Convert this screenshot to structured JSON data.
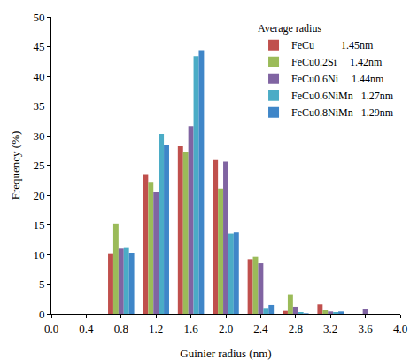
{
  "chart_data": {
    "type": "bar",
    "x_label": "Guinier radius (nm)",
    "y_label": "Frequency (%)",
    "x": [
      0.8,
      1.2,
      1.6,
      2.0,
      2.4,
      2.8,
      3.2,
      3.6
    ],
    "series": [
      {
        "name": "FeCu",
        "radius": "1.45nm",
        "color": "#c0504d",
        "values": [
          10.2,
          23.5,
          28.2,
          26.0,
          9.2,
          0.5,
          1.6,
          0
        ]
      },
      {
        "name": "FeCu0.2Si",
        "radius": "1.42nm",
        "color": "#9bbb59",
        "values": [
          15.1,
          22.2,
          27.3,
          21.1,
          9.6,
          3.2,
          0.6,
          0
        ]
      },
      {
        "name": "FeCu0.6Ni",
        "radius": "1.44nm",
        "color": "#8064a2",
        "values": [
          11.0,
          20.5,
          31.6,
          25.6,
          8.5,
          1.2,
          0.4,
          0.8
        ]
      },
      {
        "name": "FeCu0.6NiMn",
        "radius": "1.27nm",
        "color": "#4bacc6",
        "values": [
          11.1,
          30.3,
          43.4,
          13.5,
          1.0,
          0.3,
          0.3,
          0
        ]
      },
      {
        "name": "FeCu0.8NiMn",
        "radius": "1.29nm",
        "color": "#3f86c8",
        "values": [
          10.3,
          28.5,
          44.4,
          13.7,
          1.5,
          0.1,
          0.4,
          0
        ]
      }
    ],
    "legend_title": "Average radius",
    "legend": "top right",
    "xlim": [
      0,
      4
    ],
    "xticks": [
      {
        "value": 0,
        "label": "0.0"
      },
      {
        "value": 0.4,
        "label": "0.4"
      },
      {
        "value": 0.8,
        "label": "0.8"
      },
      {
        "value": 1.2,
        "label": "1.2"
      },
      {
        "value": 1.6,
        "label": "1.6"
      },
      {
        "value": 2,
        "label": "2.0"
      },
      {
        "value": 2.4,
        "label": "2.4"
      },
      {
        "value": 2.8,
        "label": "2.8"
      },
      {
        "value": 3.2,
        "label": "3.2"
      },
      {
        "value": 3.6,
        "label": "3.6"
      },
      {
        "value": 4,
        "label": "4.0"
      }
    ],
    "ylim": [
      0,
      50
    ],
    "yticks": [
      0,
      5,
      10,
      15,
      20,
      25,
      30,
      35,
      40,
      45,
      50
    ],
    "grid": false
  }
}
